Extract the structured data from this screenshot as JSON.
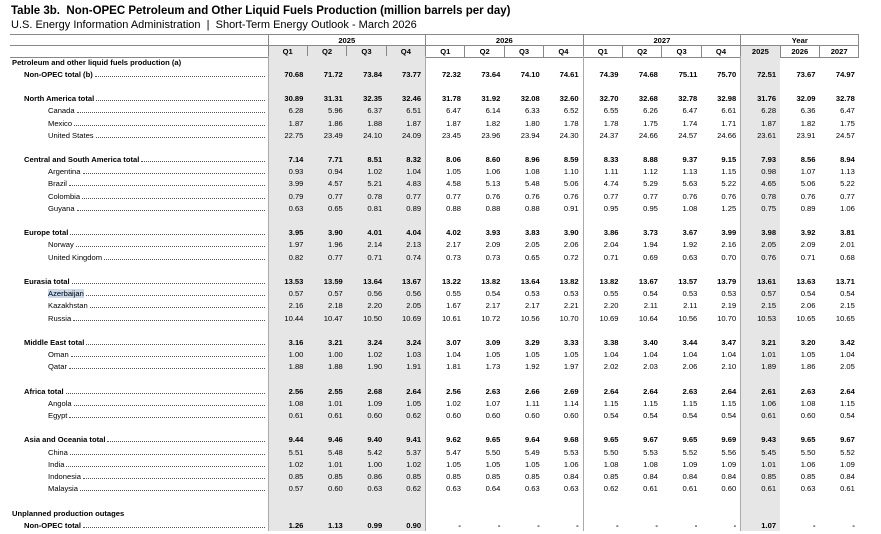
{
  "header": {
    "title": "Table 3b.  Non-OPEC Petroleum and Other Liquid Fuels Production (million barrels per day)",
    "subtitle": "U.S. Energy Information Administration  |  Short-Term Energy Outlook - March 2026"
  },
  "table": {
    "column_groups": [
      {
        "label": "2025",
        "columns": [
          "Q1",
          "Q2",
          "Q3",
          "Q4"
        ]
      },
      {
        "label": "2026",
        "columns": [
          "Q1",
          "Q2",
          "Q3",
          "Q4"
        ]
      },
      {
        "label": "2027",
        "columns": [
          "Q1",
          "Q2",
          "Q3",
          "Q4"
        ]
      },
      {
        "label": "Year",
        "columns": [
          "2025",
          "2026",
          "2027"
        ]
      }
    ],
    "sections": [
      {
        "heading": "Petroleum and other liquid fuels production (a)",
        "groups": [
          {
            "title": "Non-OPEC total (b)",
            "values": [
              "70.68",
              "71.72",
              "73.84",
              "73.77",
              "72.32",
              "73.64",
              "74.10",
              "74.61",
              "74.39",
              "74.68",
              "75.11",
              "75.70",
              "72.51",
              "73.67",
              "74.97"
            ],
            "items": []
          },
          {
            "title": "North America total",
            "values": [
              "30.89",
              "31.31",
              "32.35",
              "32.46",
              "31.78",
              "31.92",
              "32.08",
              "32.60",
              "32.70",
              "32.68",
              "32.78",
              "32.98",
              "31.76",
              "32.09",
              "32.78"
            ],
            "items": [
              {
                "label": "Canada",
                "values": [
                  "6.28",
                  "5.96",
                  "6.37",
                  "6.51",
                  "6.47",
                  "6.14",
                  "6.33",
                  "6.52",
                  "6.55",
                  "6.26",
                  "6.47",
                  "6.61",
                  "6.28",
                  "6.36",
                  "6.47"
                ]
              },
              {
                "label": "Mexico",
                "values": [
                  "1.87",
                  "1.86",
                  "1.88",
                  "1.87",
                  "1.87",
                  "1.82",
                  "1.80",
                  "1.78",
                  "1.78",
                  "1.75",
                  "1.74",
                  "1.71",
                  "1.87",
                  "1.82",
                  "1.75"
                ]
              },
              {
                "label": "United States",
                "values": [
                  "22.75",
                  "23.49",
                  "24.10",
                  "24.09",
                  "23.45",
                  "23.96",
                  "23.94",
                  "24.30",
                  "24.37",
                  "24.66",
                  "24.57",
                  "24.66",
                  "23.61",
                  "23.91",
                  "24.57"
                ]
              }
            ]
          },
          {
            "title": "Central and South America total",
            "values": [
              "7.14",
              "7.71",
              "8.51",
              "8.32",
              "8.06",
              "8.60",
              "8.96",
              "8.59",
              "8.33",
              "8.88",
              "9.37",
              "9.15",
              "7.93",
              "8.56",
              "8.94"
            ],
            "items": [
              {
                "label": "Argentina",
                "values": [
                  "0.93",
                  "0.94",
                  "1.02",
                  "1.04",
                  "1.05",
                  "1.06",
                  "1.08",
                  "1.10",
                  "1.11",
                  "1.12",
                  "1.13",
                  "1.15",
                  "0.98",
                  "1.07",
                  "1.13"
                ]
              },
              {
                "label": "Brazil",
                "values": [
                  "3.99",
                  "4.57",
                  "5.21",
                  "4.83",
                  "4.58",
                  "5.13",
                  "5.48",
                  "5.06",
                  "4.74",
                  "5.29",
                  "5.63",
                  "5.22",
                  "4.65",
                  "5.06",
                  "5.22"
                ]
              },
              {
                "label": "Colombia",
                "values": [
                  "0.79",
                  "0.77",
                  "0.78",
                  "0.77",
                  "0.77",
                  "0.76",
                  "0.76",
                  "0.76",
                  "0.77",
                  "0.77",
                  "0.76",
                  "0.76",
                  "0.78",
                  "0.76",
                  "0.77"
                ]
              },
              {
                "label": "Guyana",
                "values": [
                  "0.63",
                  "0.65",
                  "0.81",
                  "0.89",
                  "0.88",
                  "0.88",
                  "0.88",
                  "0.91",
                  "0.95",
                  "0.95",
                  "1.08",
                  "1.25",
                  "0.75",
                  "0.89",
                  "1.06"
                ]
              }
            ]
          },
          {
            "title": "Europe total",
            "values": [
              "3.95",
              "3.90",
              "4.01",
              "4.04",
              "4.02",
              "3.93",
              "3.83",
              "3.90",
              "3.86",
              "3.73",
              "3.67",
              "3.99",
              "3.98",
              "3.92",
              "3.81"
            ],
            "items": [
              {
                "label": "Norway",
                "values": [
                  "1.97",
                  "1.96",
                  "2.14",
                  "2.13",
                  "2.17",
                  "2.09",
                  "2.05",
                  "2.06",
                  "2.04",
                  "1.94",
                  "1.92",
                  "2.16",
                  "2.05",
                  "2.09",
                  "2.01"
                ]
              },
              {
                "label": "United Kingdom",
                "values": [
                  "0.82",
                  "0.77",
                  "0.71",
                  "0.74",
                  "0.73",
                  "0.73",
                  "0.65",
                  "0.72",
                  "0.71",
                  "0.69",
                  "0.63",
                  "0.70",
                  "0.76",
                  "0.71",
                  "0.68"
                ]
              }
            ]
          },
          {
            "title": "Eurasia total",
            "values": [
              "13.53",
              "13.59",
              "13.64",
              "13.67",
              "13.22",
              "13.82",
              "13.64",
              "13.82",
              "13.82",
              "13.67",
              "13.57",
              "13.79",
              "13.61",
              "13.63",
              "13.71"
            ],
            "items": [
              {
                "label": "Azerbaijan",
                "values": [
                  "0.57",
                  "0.57",
                  "0.56",
                  "0.56",
                  "0.55",
                  "0.54",
                  "0.53",
                  "0.53",
                  "0.55",
                  "0.54",
                  "0.53",
                  "0.53",
                  "0.57",
                  "0.54",
                  "0.54"
                ]
              },
              {
                "label": "Kazakhstan",
                "values": [
                  "2.16",
                  "2.18",
                  "2.20",
                  "2.05",
                  "1.67",
                  "2.17",
                  "2.17",
                  "2.21",
                  "2.20",
                  "2.11",
                  "2.11",
                  "2.19",
                  "2.15",
                  "2.06",
                  "2.15"
                ]
              },
              {
                "label": "Russia",
                "values": [
                  "10.44",
                  "10.47",
                  "10.50",
                  "10.69",
                  "10.61",
                  "10.72",
                  "10.56",
                  "10.70",
                  "10.69",
                  "10.64",
                  "10.56",
                  "10.70",
                  "10.53",
                  "10.65",
                  "10.65"
                ]
              }
            ]
          },
          {
            "title": "Middle East total",
            "values": [
              "3.16",
              "3.21",
              "3.24",
              "3.24",
              "3.07",
              "3.09",
              "3.29",
              "3.33",
              "3.38",
              "3.40",
              "3.44",
              "3.47",
              "3.21",
              "3.20",
              "3.42"
            ],
            "items": [
              {
                "label": "Oman",
                "values": [
                  "1.00",
                  "1.00",
                  "1.02",
                  "1.03",
                  "1.04",
                  "1.05",
                  "1.05",
                  "1.05",
                  "1.04",
                  "1.04",
                  "1.04",
                  "1.04",
                  "1.01",
                  "1.05",
                  "1.04"
                ]
              },
              {
                "label": "Qatar",
                "values": [
                  "1.88",
                  "1.88",
                  "1.90",
                  "1.91",
                  "1.81",
                  "1.73",
                  "1.92",
                  "1.97",
                  "2.02",
                  "2.03",
                  "2.06",
                  "2.10",
                  "1.89",
                  "1.86",
                  "2.05"
                ]
              }
            ]
          },
          {
            "title": "Africa total",
            "values": [
              "2.56",
              "2.55",
              "2.68",
              "2.64",
              "2.56",
              "2.63",
              "2.66",
              "2.69",
              "2.64",
              "2.64",
              "2.63",
              "2.64",
              "2.61",
              "2.63",
              "2.64"
            ],
            "items": [
              {
                "label": "Angola",
                "values": [
                  "1.08",
                  "1.01",
                  "1.09",
                  "1.05",
                  "1.02",
                  "1.07",
                  "1.11",
                  "1.14",
                  "1.15",
                  "1.15",
                  "1.15",
                  "1.15",
                  "1.06",
                  "1.08",
                  "1.15"
                ]
              },
              {
                "label": "Egypt",
                "values": [
                  "0.61",
                  "0.61",
                  "0.60",
                  "0.62",
                  "0.60",
                  "0.60",
                  "0.60",
                  "0.60",
                  "0.54",
                  "0.54",
                  "0.54",
                  "0.54",
                  "0.61",
                  "0.60",
                  "0.54"
                ]
              }
            ]
          },
          {
            "title": "Asia and Oceania total",
            "values": [
              "9.44",
              "9.46",
              "9.40",
              "9.41",
              "9.62",
              "9.65",
              "9.64",
              "9.68",
              "9.65",
              "9.67",
              "9.65",
              "9.69",
              "9.43",
              "9.65",
              "9.67"
            ],
            "items": [
              {
                "label": "China",
                "values": [
                  "5.51",
                  "5.48",
                  "5.42",
                  "5.37",
                  "5.47",
                  "5.50",
                  "5.49",
                  "5.53",
                  "5.50",
                  "5.53",
                  "5.52",
                  "5.56",
                  "5.45",
                  "5.50",
                  "5.52"
                ]
              },
              {
                "label": "India",
                "values": [
                  "1.02",
                  "1.01",
                  "1.00",
                  "1.02",
                  "1.05",
                  "1.05",
                  "1.05",
                  "1.06",
                  "1.08",
                  "1.08",
                  "1.09",
                  "1.09",
                  "1.01",
                  "1.06",
                  "1.09"
                ]
              },
              {
                "label": "Indonesia",
                "values": [
                  "0.85",
                  "0.85",
                  "0.86",
                  "0.85",
                  "0.85",
                  "0.85",
                  "0.85",
                  "0.84",
                  "0.85",
                  "0.84",
                  "0.84",
                  "0.84",
                  "0.85",
                  "0.85",
                  "0.84"
                ]
              },
              {
                "label": "Malaysia",
                "values": [
                  "0.57",
                  "0.60",
                  "0.63",
                  "0.62",
                  "0.63",
                  "0.64",
                  "0.63",
                  "0.63",
                  "0.62",
                  "0.61",
                  "0.61",
                  "0.60",
                  "0.61",
                  "0.63",
                  "0.61"
                ]
              }
            ]
          }
        ]
      },
      {
        "heading": "Unplanned production outages",
        "groups": [
          {
            "title": "Non-OPEC total",
            "values": [
              "1.26",
              "1.13",
              "0.99",
              "0.90",
              "-",
              "-",
              "-",
              "-",
              "-",
              "-",
              "-",
              "-",
              "1.07",
              "-",
              "-"
            ],
            "items": []
          }
        ]
      }
    ]
  }
}
